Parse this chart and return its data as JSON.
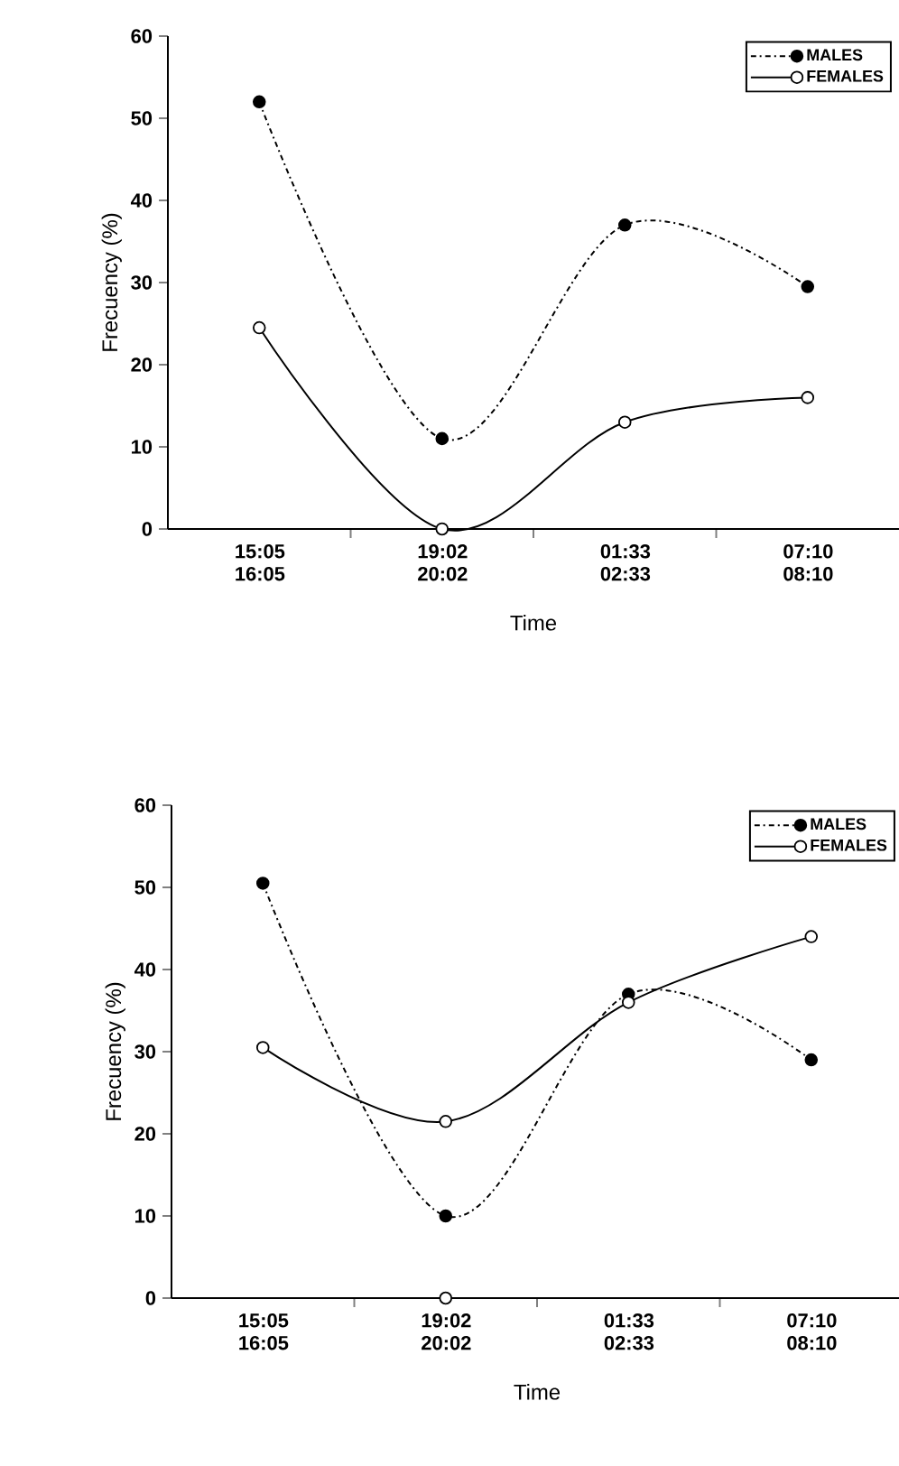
{
  "chart_data": [
    {
      "type": "line",
      "xlabel": "Time",
      "ylabel": "Frecuency (%)",
      "categories": [
        "15:05 16:05",
        "19:02 20:02",
        "01:33 02:33",
        "07:10 08:10"
      ],
      "ylim": [
        0,
        60
      ],
      "yticks": [
        0,
        10,
        20,
        30,
        40,
        50,
        60
      ],
      "legend": "top right",
      "marker": "circle",
      "series": [
        {
          "name": "MALES",
          "color": "#000000",
          "line_style": "dashdot",
          "values": [
            52,
            11,
            37,
            29.5
          ]
        },
        {
          "name": "FEMALES",
          "color": "#000000",
          "line_style": "solid",
          "values": [
            24.5,
            0,
            13,
            16
          ]
        }
      ]
    },
    {
      "type": "line",
      "xlabel": "Time",
      "ylabel": "Frecuency (%)",
      "categories": [
        "15:05 16:05",
        "19:02 20:02",
        "01:33 02:33",
        "07:10 08:10"
      ],
      "ylim": [
        0,
        60
      ],
      "yticks": [
        0,
        10,
        20,
        30,
        40,
        50,
        60
      ],
      "legend": "top right",
      "marker": "circle",
      "series": [
        {
          "name": "MALES",
          "color": "#000000",
          "line_style": "dashdot",
          "values": [
            50.5,
            10,
            37,
            29
          ]
        },
        {
          "name": "FEMALES",
          "color": "#000000",
          "line_style": "solid",
          "values": [
            30.5,
            21.5,
            36,
            44
          ]
        },
        {
          "type": "scatter",
          "color": "#000000",
          "line_style": "solid",
          "values": [
            null,
            0,
            null,
            null
          ]
        }
      ]
    }
  ]
}
